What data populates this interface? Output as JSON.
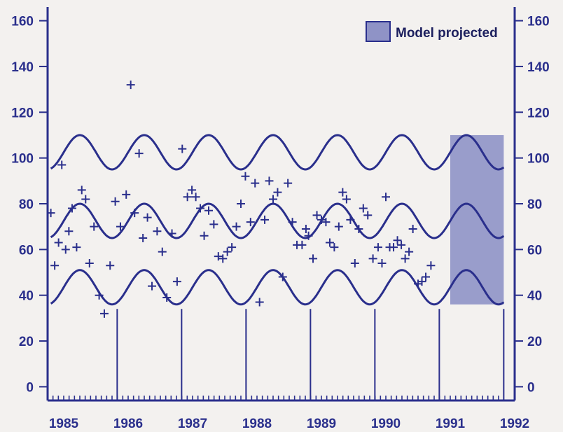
{
  "chart_data": {
    "type": "line",
    "title": "",
    "xlabel": "",
    "ylabel": "",
    "xlim": [
      1984.75,
      1992.0
    ],
    "ylim": [
      -6,
      166
    ],
    "grid": false,
    "legend": {
      "placement": "top-right",
      "entries": [
        "Model projected"
      ]
    },
    "y_ticks": [
      0,
      20,
      40,
      60,
      80,
      100,
      120,
      140,
      160
    ],
    "x_tick_labels": [
      "1985",
      "1986",
      "1987",
      "1988",
      "1989",
      "1990",
      "1991",
      "1992"
    ],
    "x_label_positions": [
      1985.0,
      1986.0,
      1987.0,
      1988.0,
      1989.0,
      1990.0,
      1991.0,
      1992.0
    ],
    "year_dividers": [
      1985.83,
      1986.83,
      1987.83,
      1988.83,
      1989.83,
      1990.83,
      1991.83
    ],
    "divider_top_value": 34,
    "projection_range": [
      1991.0,
      1991.83
    ],
    "series": [
      {
        "mean": 102.5,
        "amplitude": 7.5,
        "phase_peak": 0.25
      },
      {
        "mean": 72.5,
        "amplitude": 7.5,
        "phase_peak": 0.25
      },
      {
        "mean": 43.5,
        "amplitude": 7.5,
        "phase_peak": 0.25
      }
    ],
    "observed": [
      [
        1984.8,
        76
      ],
      [
        1984.86,
        53
      ],
      [
        1984.92,
        63
      ],
      [
        1984.97,
        97
      ],
      [
        1985.03,
        60
      ],
      [
        1985.08,
        68
      ],
      [
        1985.13,
        78
      ],
      [
        1985.2,
        61
      ],
      [
        1985.28,
        86
      ],
      [
        1985.34,
        82
      ],
      [
        1985.4,
        54
      ],
      [
        1985.47,
        70
      ],
      [
        1985.55,
        40
      ],
      [
        1985.63,
        32
      ],
      [
        1985.72,
        53
      ],
      [
        1985.8,
        81
      ],
      [
        1985.88,
        70
      ],
      [
        1985.97,
        84
      ],
      [
        1986.04,
        132
      ],
      [
        1986.1,
        76
      ],
      [
        1986.17,
        102
      ],
      [
        1986.23,
        65
      ],
      [
        1986.3,
        74
      ],
      [
        1986.37,
        44
      ],
      [
        1986.45,
        68
      ],
      [
        1986.53,
        59
      ],
      [
        1986.6,
        39
      ],
      [
        1986.68,
        67
      ],
      [
        1986.76,
        46
      ],
      [
        1986.84,
        104
      ],
      [
        1986.92,
        83
      ],
      [
        1986.99,
        86
      ],
      [
        1987.05,
        83
      ],
      [
        1987.12,
        78
      ],
      [
        1987.18,
        66
      ],
      [
        1987.25,
        77
      ],
      [
        1987.33,
        71
      ],
      [
        1987.4,
        57
      ],
      [
        1987.47,
        56
      ],
      [
        1987.54,
        59
      ],
      [
        1987.61,
        61
      ],
      [
        1987.68,
        70
      ],
      [
        1987.75,
        80
      ],
      [
        1987.82,
        92
      ],
      [
        1987.9,
        72
      ],
      [
        1987.97,
        89
      ],
      [
        1988.04,
        37
      ],
      [
        1988.12,
        73
      ],
      [
        1988.19,
        90
      ],
      [
        1988.25,
        82
      ],
      [
        1988.32,
        85
      ],
      [
        1988.4,
        48
      ],
      [
        1988.48,
        89
      ],
      [
        1988.55,
        72
      ],
      [
        1988.62,
        62
      ],
      [
        1988.7,
        62
      ],
      [
        1988.76,
        69
      ],
      [
        1988.8,
        66
      ],
      [
        1988.87,
        56
      ],
      [
        1988.93,
        75
      ],
      [
        1989.0,
        73
      ],
      [
        1989.07,
        72
      ],
      [
        1989.13,
        63
      ],
      [
        1989.2,
        61
      ],
      [
        1989.27,
        70
      ],
      [
        1989.33,
        85
      ],
      [
        1989.39,
        82
      ],
      [
        1989.45,
        73
      ],
      [
        1989.52,
        54
      ],
      [
        1989.58,
        69
      ],
      [
        1989.65,
        78
      ],
      [
        1989.72,
        75
      ],
      [
        1989.8,
        56
      ],
      [
        1989.88,
        61
      ],
      [
        1989.94,
        54
      ],
      [
        1990.0,
        83
      ],
      [
        1990.06,
        61
      ],
      [
        1990.12,
        61
      ],
      [
        1990.18,
        64
      ],
      [
        1990.24,
        62
      ],
      [
        1990.3,
        56
      ],
      [
        1990.36,
        59
      ],
      [
        1990.42,
        69
      ],
      [
        1990.5,
        45
      ],
      [
        1990.56,
        46
      ],
      [
        1990.62,
        48
      ],
      [
        1990.7,
        53
      ]
    ]
  },
  "legend": {
    "label": "Model projected",
    "swatch_color": "#8f93c6"
  },
  "colors": {
    "ink": "#2a2f8c",
    "projection_fill": "#8f93c6",
    "background": "#f3f1ef"
  }
}
